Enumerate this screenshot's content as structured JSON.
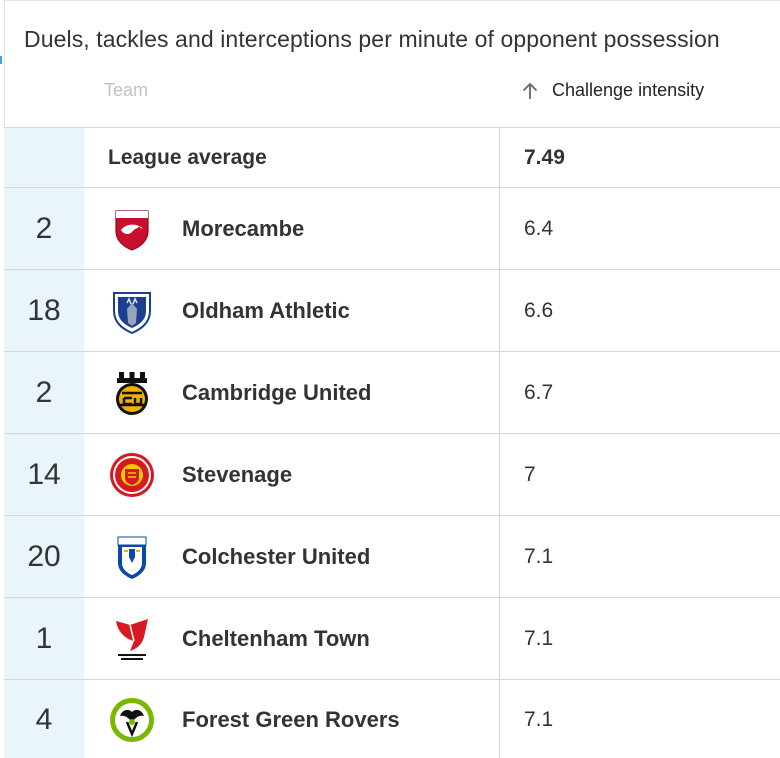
{
  "title": "Duels, tackles and interceptions per minute of opponent possession",
  "header": {
    "team_label": "Team",
    "metric_label": "Challenge intensity",
    "sort_icon": "arrow-up-icon"
  },
  "league_average": {
    "label": "League average",
    "value": "7.49"
  },
  "rows": [
    {
      "rank": "2",
      "team": "Morecambe",
      "value": "6.4",
      "crest": "morecambe-crest-icon",
      "colors": [
        "#c8102e",
        "#ffffff"
      ]
    },
    {
      "rank": "18",
      "team": "Oldham Athletic",
      "value": "6.6",
      "crest": "oldham-crest-icon",
      "colors": [
        "#1c3f94",
        "#ffffff"
      ]
    },
    {
      "rank": "2",
      "team": "Cambridge United",
      "value": "6.7",
      "crest": "cambridge-crest-icon",
      "colors": [
        "#f2b100",
        "#111111"
      ]
    },
    {
      "rank": "14",
      "team": "Stevenage",
      "value": "7",
      "crest": "stevenage-crest-icon",
      "colors": [
        "#d71920",
        "#f6c900"
      ]
    },
    {
      "rank": "20",
      "team": "Colchester United",
      "value": "7.1",
      "crest": "colchester-crest-icon",
      "colors": [
        "#0a4aa6",
        "#ffffff"
      ]
    },
    {
      "rank": "1",
      "team": "Cheltenham Town",
      "value": "7.1",
      "crest": "cheltenham-crest-icon",
      "colors": [
        "#d71920",
        "#111111"
      ]
    },
    {
      "rank": "4",
      "team": "Forest Green Rovers",
      "value": "7.1",
      "crest": "forest-green-crest-icon",
      "colors": [
        "#7ab800",
        "#111111"
      ]
    }
  ]
}
